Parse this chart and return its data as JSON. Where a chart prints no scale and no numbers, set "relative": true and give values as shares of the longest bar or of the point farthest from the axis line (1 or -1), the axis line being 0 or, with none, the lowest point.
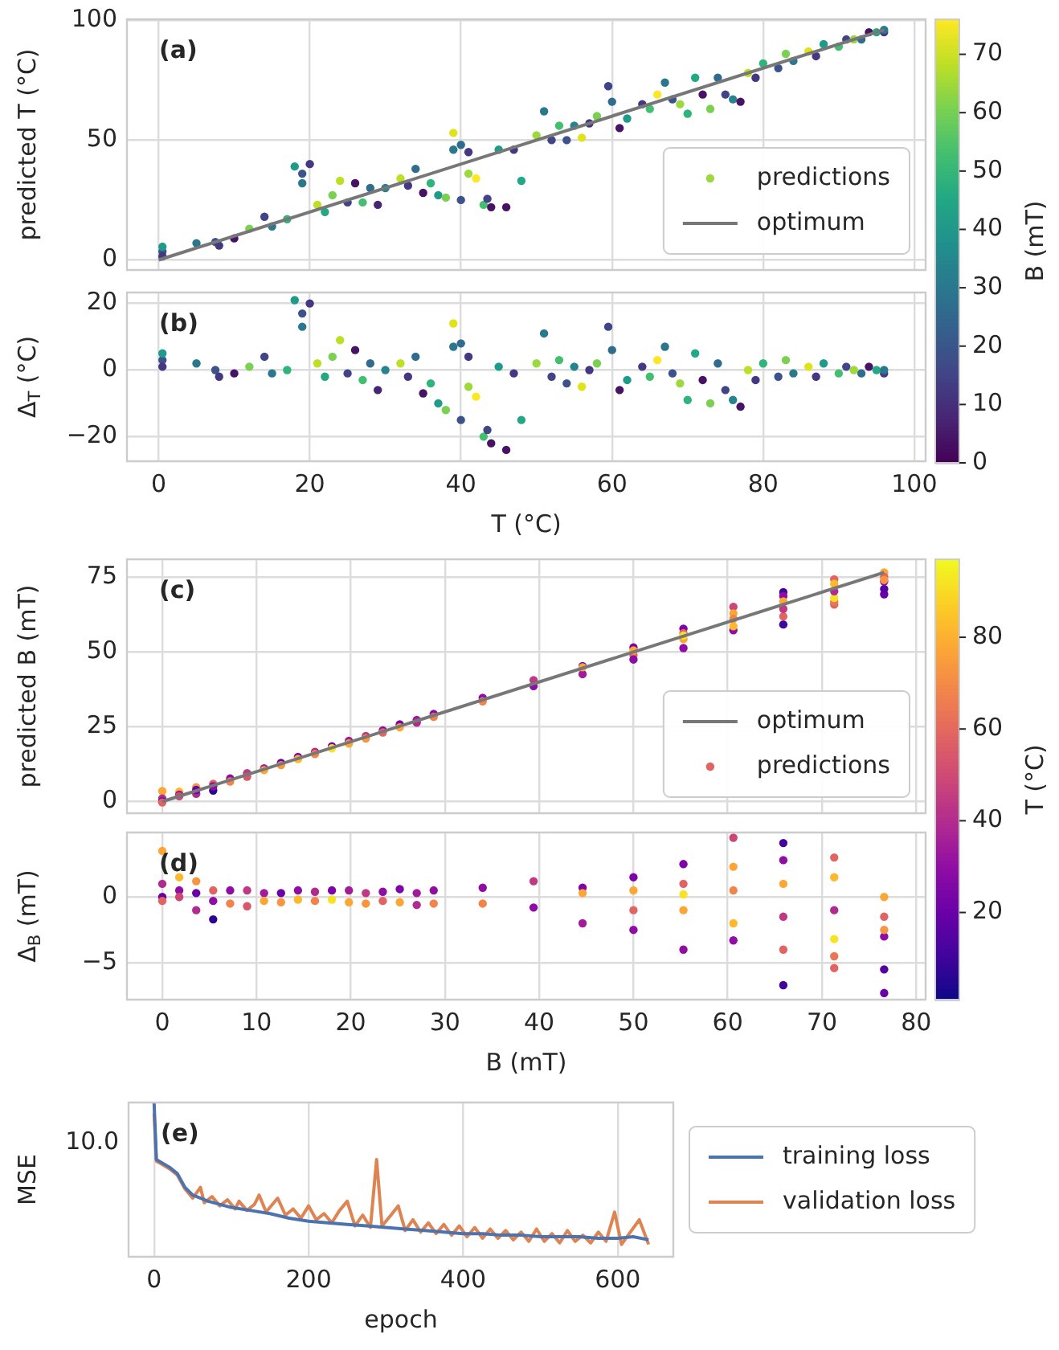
{
  "chart_data": [
    {
      "type": "scatter",
      "title": "(a)",
      "ylabel": "predicted T (°C)",
      "clabel": "B (mT)",
      "xlim": [
        -4.2,
        101.5
      ],
      "xticks": [
        0,
        20,
        40,
        60,
        80,
        100
      ],
      "ylim": [
        -4.2,
        100.4
      ],
      "yticks": [
        0,
        50,
        100
      ],
      "tick_labels": "y",
      "grid": true,
      "legend": "lower right",
      "clim": [
        0,
        76
      ],
      "cticks": [
        0,
        10,
        20,
        30,
        40,
        50,
        60,
        70
      ],
      "series": [
        {
          "name": "predictions",
          "type": "scatter",
          "marker": "circle",
          "x": [
            41,
            0.5,
            0.5,
            0.5,
            5,
            7.5,
            8,
            10,
            12,
            14,
            15,
            17,
            18,
            19,
            19,
            20,
            21,
            22,
            23,
            24,
            25,
            26,
            27,
            28,
            29,
            30,
            32,
            33,
            34,
            35,
            36,
            37,
            38,
            39,
            39,
            40,
            40,
            41,
            42,
            43,
            43.5,
            44,
            45,
            46,
            47,
            48,
            50,
            51,
            52,
            53,
            54,
            55,
            56,
            57,
            58,
            59.5,
            60,
            61,
            62,
            64,
            65,
            66,
            67,
            68,
            69,
            70,
            71,
            72,
            73,
            74,
            75,
            76,
            77,
            78,
            79,
            80,
            82,
            83,
            84,
            86,
            87,
            88,
            90,
            91,
            92,
            93,
            94,
            95,
            96,
            96
          ],
          "values": [
            36,
            3.5,
            5.5,
            1.5,
            7,
            7.5,
            6,
            9,
            13,
            18,
            14,
            17,
            39,
            36,
            32,
            40,
            23,
            20,
            27,
            33,
            24,
            32,
            24,
            30,
            23,
            30,
            34,
            31,
            38,
            28,
            32,
            27,
            26,
            53,
            46,
            48,
            25,
            45,
            34,
            23,
            25.5,
            22,
            46,
            22,
            46,
            33,
            52,
            62,
            50,
            56,
            50,
            56,
            51,
            57,
            60,
            72.5,
            66,
            55,
            59,
            65,
            63,
            69,
            74,
            67,
            65,
            61,
            76,
            69,
            63,
            76,
            69,
            67,
            66,
            78,
            76,
            82,
            80,
            86,
            83,
            87,
            85,
            90,
            89,
            92,
            92,
            92,
            95,
            95,
            95,
            96
          ],
          "colors": [
            "#9bd93c",
            "#3b528b",
            "#1e9c89",
            "#453781",
            "#2a788e",
            "#3b528b",
            "#453781",
            "#471365",
            "#7ad151",
            "#414487",
            "#2a788e",
            "#2fb47c",
            "#1e9c89",
            "#3b528b",
            "#2a788e",
            "#453781",
            "#bddf26",
            "#22a884",
            "#7ad151",
            "#bddf26",
            "#414487",
            "#471365",
            "#44bf70",
            "#2f6c8e",
            "#482475",
            "#25848e",
            "#bddf26",
            "#453781",
            "#2f6c8e",
            "#471365",
            "#2fb47c",
            "#1e9c89",
            "#7ad151",
            "#dfe318",
            "#2a788e",
            "#2f6c8e",
            "#3b528b",
            "#453781",
            "#fde725",
            "#44bf70",
            "#414487",
            "#471365",
            "#1e9c89",
            "#471365",
            "#453781",
            "#22a884",
            "#9bd93c",
            "#2a788e",
            "#414487",
            "#44bf70",
            "#3b528b",
            "#25848e",
            "#dfe318",
            "#453781",
            "#7ad151",
            "#414487",
            "#2f6c8e",
            "#471365",
            "#1e9c89",
            "#453781",
            "#44bf70",
            "#fde725",
            "#2a788e",
            "#3b528b",
            "#9bd93c",
            "#2fb47c",
            "#22a884",
            "#471365",
            "#7ad151",
            "#2f6c8e",
            "#414487",
            "#25848e",
            "#471365",
            "#bddf26",
            "#453781",
            "#2fb47c",
            "#3b528b",
            "#7ad151",
            "#2a788e",
            "#dfe318",
            "#453781",
            "#1e9c89",
            "#44bf70",
            "#414487",
            "#9bd93c",
            "#2f6c8e",
            "#471365",
            "#22a884",
            "#453781",
            "#2a788e"
          ]
        },
        {
          "name": "optimum",
          "type": "line",
          "marker": "none",
          "color": "#777777",
          "x": [
            0,
            96
          ],
          "values": [
            0,
            96
          ]
        }
      ]
    },
    {
      "type": "scatter",
      "title": "(b)",
      "xlabel": "T (°C)",
      "ylabel": "Δ$_{T}$ (°C)",
      "xlim": [
        -4.2,
        101.5
      ],
      "xticks": [
        0,
        20,
        40,
        60,
        80,
        100
      ],
      "ylim": [
        -27.4,
        23.3
      ],
      "yticks": [
        {
          "value": -20,
          "label": "−20"
        },
        0,
        20
      ],
      "grid": true,
      "series": [
        {
          "type": "scatter",
          "marker": "circle",
          "x": [
            0.5,
            0.5,
            0.5,
            5,
            7.5,
            8,
            10,
            12,
            14,
            15,
            17,
            18,
            19,
            19,
            20,
            21,
            22,
            23,
            24,
            25,
            26,
            27,
            28,
            29,
            30,
            32,
            33,
            34,
            35,
            36,
            37,
            38,
            39,
            39,
            40,
            40,
            41,
            41,
            42,
            43,
            43.5,
            44,
            45,
            46,
            47,
            48,
            50,
            51,
            52,
            53,
            54,
            55,
            56,
            57,
            58,
            59.5,
            60,
            61,
            62,
            64,
            65,
            66,
            67,
            68,
            69,
            70,
            71,
            72,
            73,
            74,
            75,
            76,
            77,
            78,
            79,
            80,
            82,
            83,
            84,
            86,
            87,
            88,
            90,
            91,
            92,
            93,
            94,
            95,
            96,
            96
          ],
          "values": [
            3,
            5,
            1,
            2,
            0,
            -2,
            -1,
            1,
            4,
            -1,
            0,
            21,
            17,
            13,
            20,
            2,
            -2,
            4,
            9,
            -1,
            6,
            -3,
            2,
            -6,
            0,
            2,
            -2,
            4,
            -7,
            -4,
            -10,
            -12,
            14,
            7,
            8,
            -15,
            4,
            -5,
            -8,
            -20,
            -18,
            -22,
            1,
            -24,
            -1,
            -15,
            2,
            11,
            -2,
            3,
            -4,
            1,
            -5,
            0,
            2,
            13,
            6,
            -6,
            -3,
            1,
            -2,
            3,
            7,
            -1,
            -4,
            -9,
            5,
            -3,
            -10,
            2,
            -6,
            -9,
            -11,
            0,
            -3,
            2,
            -2,
            3,
            -1,
            1,
            -2,
            2,
            -1,
            1,
            0,
            -1,
            1,
            0,
            -1,
            0
          ],
          "colors": [
            "#3b528b",
            "#1e9c89",
            "#453781",
            "#2a788e",
            "#3b528b",
            "#453781",
            "#471365",
            "#7ad151",
            "#414487",
            "#2a788e",
            "#2fb47c",
            "#1e9c89",
            "#3b528b",
            "#2a788e",
            "#453781",
            "#bddf26",
            "#22a884",
            "#7ad151",
            "#bddf26",
            "#414487",
            "#471365",
            "#44bf70",
            "#2f6c8e",
            "#482475",
            "#25848e",
            "#bddf26",
            "#453781",
            "#2f6c8e",
            "#471365",
            "#2fb47c",
            "#1e9c89",
            "#7ad151",
            "#dfe318",
            "#2a788e",
            "#2f6c8e",
            "#3b528b",
            "#453781",
            "#9bd93c",
            "#fde725",
            "#44bf70",
            "#414487",
            "#471365",
            "#1e9c89",
            "#471365",
            "#453781",
            "#22a884",
            "#9bd93c",
            "#2a788e",
            "#414487",
            "#44bf70",
            "#3b528b",
            "#25848e",
            "#dfe318",
            "#453781",
            "#7ad151",
            "#414487",
            "#2f6c8e",
            "#471365",
            "#1e9c89",
            "#453781",
            "#44bf70",
            "#fde725",
            "#2a788e",
            "#3b528b",
            "#9bd93c",
            "#2fb47c",
            "#22a884",
            "#471365",
            "#7ad151",
            "#2f6c8e",
            "#414487",
            "#25848e",
            "#471365",
            "#bddf26",
            "#453781",
            "#2fb47c",
            "#3b528b",
            "#7ad151",
            "#2a788e",
            "#dfe318",
            "#453781",
            "#1e9c89",
            "#44bf70",
            "#414487",
            "#9bd93c",
            "#2f6c8e",
            "#471365",
            "#22a884",
            "#453781",
            "#2a788e"
          ]
        }
      ]
    },
    {
      "type": "scatter",
      "title": "(c)",
      "ylabel": "predicted B (mT)",
      "clabel": "T (°C)",
      "xlim": [
        -3.75,
        81
      ],
      "xticks": [
        0,
        10,
        20,
        30,
        40,
        50,
        60,
        70,
        80
      ],
      "ylim": [
        -3.9,
        81
      ],
      "yticks": [
        0,
        25,
        50,
        75
      ],
      "tick_labels": "y",
      "grid": true,
      "legend": "lower right",
      "clim": [
        1,
        97
      ],
      "cticks": [
        20,
        40,
        60,
        80
      ],
      "series": [
        {
          "name": "optimum",
          "type": "line",
          "marker": "none",
          "color": "#777777",
          "x": [
            0,
            76.6
          ],
          "values": [
            0,
            76.6
          ]
        },
        {
          "name": "predictions",
          "type": "scatter",
          "marker": "circle",
          "x": [
            50,
            0,
            0,
            0,
            0,
            1.8,
            1.8,
            1.8,
            3.6,
            3.6,
            3.6,
            5.4,
            5.4,
            5.4,
            7.2,
            7.2,
            9,
            9,
            10.8,
            10.8,
            12.6,
            12.6,
            14.4,
            14.4,
            16.2,
            16.2,
            18,
            18,
            19.8,
            19.8,
            21.6,
            21.6,
            23.4,
            23.4,
            25.2,
            25.2,
            27,
            27,
            28.8,
            28.8,
            34,
            34,
            39.4,
            39.4,
            44.6,
            44.6,
            44.6,
            50,
            50,
            50,
            55.3,
            55.3,
            55.3,
            55.3,
            55.3,
            60.6,
            60.6,
            60.6,
            60.6,
            60.6,
            65.9,
            65.9,
            65.9,
            65.9,
            65.9,
            65.9,
            71.3,
            71.3,
            71.3,
            71.3,
            71.3,
            71.3,
            76.6,
            76.6,
            76.6,
            76.6,
            76.6,
            76.6
          ],
          "values": [
            49,
            3.5,
            1,
            0,
            -0.3,
            3.3,
            2.3,
            1.8,
            4.8,
            2.6,
            3.9,
            3.7,
            5.9,
            5.1,
            7.7,
            6.7,
            9.5,
            8.3,
            11.1,
            10.5,
            12.9,
            12.2,
            14.9,
            14.2,
            16.6,
            15.9,
            18.5,
            17.8,
            20.3,
            19.4,
            21.9,
            21.1,
            23.8,
            23.1,
            25.8,
            24.8,
            27.3,
            26.4,
            29.3,
            28.3,
            34.7,
            33.5,
            40.6,
            38.6,
            45.3,
            42.6,
            44.9,
            51.5,
            47.5,
            50.5,
            57.8,
            51.3,
            56.3,
            54.3,
            55.5,
            65.1,
            62.9,
            57.3,
            61.1,
            58.6,
            70,
            68.7,
            59.2,
            61.9,
            66.9,
            64.4,
            74.3,
            65.9,
            66.8,
            68.1,
            72.8,
            70.3,
            76.6,
            69.3,
            71.1,
            73.6,
            75.1,
            74.1
          ],
          "colors": [
            "#e16462",
            "#fca636",
            "#b12a90",
            "#6a00a8",
            "#e16462",
            "#feb82c",
            "#8f0da4",
            "#cc4778",
            "#f89540",
            "#b12a90",
            "#6a00a8",
            "#2a0593",
            "#e16462",
            "#8f0da4",
            "#8f0da4",
            "#f2844b",
            "#bf3984",
            "#d8576b",
            "#a11b9b",
            "#fca636",
            "#6a00a8",
            "#f89540",
            "#8f0da4",
            "#feb82c",
            "#b12a90",
            "#f2844b",
            "#7e03a8",
            "#f7e225",
            "#a11b9b",
            "#fca636",
            "#bf3984",
            "#f89540",
            "#8f0da4",
            "#e16462",
            "#7e03a8",
            "#fca636",
            "#a11b9b",
            "#b12a90",
            "#8f0da4",
            "#f2844b",
            "#8f0da4",
            "#f2844b",
            "#bf3984",
            "#8f0da4",
            "#7e03a8",
            "#a11b9b",
            "#fca636",
            "#7e03a8",
            "#8f0da4",
            "#fca636",
            "#7e03a8",
            "#8f0da4",
            "#e16462",
            "#fca636",
            "#f7e225",
            "#cc4778",
            "#fca636",
            "#8f0da4",
            "#f2844b",
            "#feb82c",
            "#41049d",
            "#8f0da4",
            "#41049d",
            "#e16462",
            "#fca636",
            "#bf3984",
            "#e16462",
            "#e16462",
            "#eb7655",
            "#f7e225",
            "#feb82c",
            "#b12a90",
            "#fca636",
            "#6a00a8",
            "#5601a4",
            "#8f0da4",
            "#e16462",
            "#f89540"
          ]
        }
      ]
    },
    {
      "type": "scatter",
      "title": "(d)",
      "xlabel": "B (mT)",
      "ylabel": "Δ$_{B}$ (mT)",
      "xlim": [
        -3.75,
        81
      ],
      "xticks": [
        0,
        10,
        20,
        30,
        40,
        50,
        60,
        70,
        80
      ],
      "ylim": [
        -7.8,
        4.9
      ],
      "yticks": [
        {
          "value": -5,
          "label": "−5"
        },
        0
      ],
      "grid": true,
      "series": [
        {
          "type": "scatter",
          "marker": "circle",
          "x": [
            0,
            0,
            0,
            0,
            1.8,
            1.8,
            1.8,
            3.6,
            3.6,
            3.6,
            5.4,
            5.4,
            5.4,
            7.2,
            7.2,
            9,
            9,
            10.8,
            10.8,
            12.6,
            12.6,
            14.4,
            14.4,
            16.2,
            16.2,
            18,
            18,
            19.8,
            19.8,
            21.6,
            21.6,
            23.4,
            23.4,
            25.2,
            25.2,
            27,
            27,
            28.8,
            28.8,
            34,
            34,
            39.4,
            39.4,
            44.6,
            44.6,
            44.6,
            50,
            50,
            50,
            50,
            55.3,
            55.3,
            55.3,
            55.3,
            55.3,
            60.6,
            60.6,
            60.6,
            60.6,
            60.6,
            65.9,
            65.9,
            65.9,
            65.9,
            65.9,
            65.9,
            71.3,
            71.3,
            71.3,
            71.3,
            71.3,
            71.3,
            76.6,
            76.6,
            76.6,
            76.6,
            76.6,
            76.6
          ],
          "values": [
            3.5,
            1,
            0,
            -0.3,
            1.5,
            0.5,
            0,
            1.2,
            -1,
            0.3,
            -1.7,
            0.5,
            -0.3,
            0.5,
            -0.5,
            0.5,
            -0.7,
            0.3,
            -0.3,
            0.3,
            -0.4,
            0.5,
            -0.2,
            0.4,
            -0.3,
            0.5,
            -0.2,
            0.5,
            -0.4,
            0.3,
            -0.5,
            0.4,
            -0.3,
            0.6,
            -0.4,
            0.3,
            -0.6,
            0.5,
            -0.5,
            0.7,
            -0.5,
            1.2,
            -0.8,
            0.7,
            -2,
            0.3,
            1.5,
            -2.5,
            0.5,
            -1,
            2.5,
            -4,
            1,
            -1,
            0.2,
            4.5,
            2.3,
            -3.3,
            0.5,
            -2,
            4.1,
            2.8,
            -6.7,
            -4,
            1,
            -1.5,
            3,
            -5.4,
            -4.5,
            -3.2,
            1.5,
            -1,
            0,
            -7.3,
            -5.5,
            -3,
            -1.5,
            -2.5
          ],
          "colors": [
            "#fca636",
            "#b12a90",
            "#6a00a8",
            "#e16462",
            "#feb82c",
            "#8f0da4",
            "#cc4778",
            "#f89540",
            "#b12a90",
            "#6a00a8",
            "#2a0593",
            "#e16462",
            "#8f0da4",
            "#8f0da4",
            "#f2844b",
            "#bf3984",
            "#d8576b",
            "#a11b9b",
            "#fca636",
            "#6a00a8",
            "#f89540",
            "#8f0da4",
            "#feb82c",
            "#b12a90",
            "#f2844b",
            "#7e03a8",
            "#f7e225",
            "#a11b9b",
            "#fca636",
            "#bf3984",
            "#f89540",
            "#8f0da4",
            "#e16462",
            "#7e03a8",
            "#fca636",
            "#a11b9b",
            "#b12a90",
            "#8f0da4",
            "#f2844b",
            "#8f0da4",
            "#f2844b",
            "#bf3984",
            "#8f0da4",
            "#7e03a8",
            "#a11b9b",
            "#fca636",
            "#7e03a8",
            "#8f0da4",
            "#fca636",
            "#e16462",
            "#7e03a8",
            "#8f0da4",
            "#e16462",
            "#fca636",
            "#f7e225",
            "#cc4778",
            "#fca636",
            "#8f0da4",
            "#f2844b",
            "#feb82c",
            "#41049d",
            "#8f0da4",
            "#41049d",
            "#e16462",
            "#fca636",
            "#bf3984",
            "#e16462",
            "#e16462",
            "#eb7655",
            "#f7e225",
            "#feb82c",
            "#b12a90",
            "#fca636",
            "#6a00a8",
            "#5601a4",
            "#8f0da4",
            "#e16462",
            "#f89540"
          ]
        }
      ]
    },
    {
      "type": "line",
      "title": "(e)",
      "xlabel": "epoch",
      "ylabel": "MSE",
      "annotations": [
        "10.0"
      ],
      "relative": true,
      "xlim": [
        -33,
        672
      ],
      "xticks": [
        0,
        200,
        400,
        600
      ],
      "grid": "x",
      "legend": "right",
      "series": [
        {
          "name": "training loss",
          "color": "#4c72b0",
          "x": [
            0,
            2,
            3,
            10,
            20,
            30,
            40,
            50,
            70,
            100,
            125,
            150,
            175,
            200,
            225,
            250,
            275,
            300,
            325,
            350,
            375,
            400,
            425,
            450,
            475,
            500,
            525,
            550,
            575,
            600,
            620,
            640
          ],
          "values": [
            1,
            0.76,
            0.63,
            0.61,
            0.58,
            0.54,
            0.45,
            0.4,
            0.36,
            0.32,
            0.3,
            0.28,
            0.25,
            0.23,
            0.22,
            0.21,
            0.2,
            0.19,
            0.18,
            0.17,
            0.16,
            0.15,
            0.15,
            0.14,
            0.14,
            0.13,
            0.13,
            0.13,
            0.12,
            0.12,
            0.13,
            0.11
          ]
        },
        {
          "name": "validation loss",
          "color": "#dd8452",
          "x": [
            0,
            3,
            10,
            20,
            30,
            40,
            50,
            60,
            65,
            75,
            85,
            95,
            105,
            110,
            120,
            130,
            136,
            145,
            160,
            170,
            180,
            190,
            200,
            210,
            220,
            230,
            240,
            250,
            260,
            270,
            280,
            288,
            295,
            305,
            316,
            325,
            335,
            345,
            355,
            365,
            375,
            385,
            395,
            405,
            415,
            425,
            435,
            445,
            455,
            465,
            475,
            485,
            495,
            505,
            515,
            525,
            535,
            545,
            555,
            565,
            575,
            585,
            596,
            605,
            615,
            628,
            640
          ],
          "values": [
            0.93,
            0.62,
            0.6,
            0.57,
            0.53,
            0.44,
            0.38,
            0.45,
            0.35,
            0.39,
            0.33,
            0.37,
            0.31,
            0.36,
            0.3,
            0.34,
            0.4,
            0.29,
            0.38,
            0.27,
            0.31,
            0.25,
            0.33,
            0.24,
            0.28,
            0.22,
            0.3,
            0.36,
            0.2,
            0.27,
            0.19,
            0.63,
            0.2,
            0.26,
            0.33,
            0.17,
            0.24,
            0.16,
            0.22,
            0.15,
            0.21,
            0.14,
            0.2,
            0.13,
            0.19,
            0.12,
            0.18,
            0.12,
            0.17,
            0.11,
            0.16,
            0.1,
            0.18,
            0.1,
            0.15,
            0.09,
            0.17,
            0.1,
            0.14,
            0.09,
            0.16,
            0.1,
            0.29,
            0.08,
            0.15,
            0.24,
            0.08
          ]
        }
      ]
    }
  ]
}
